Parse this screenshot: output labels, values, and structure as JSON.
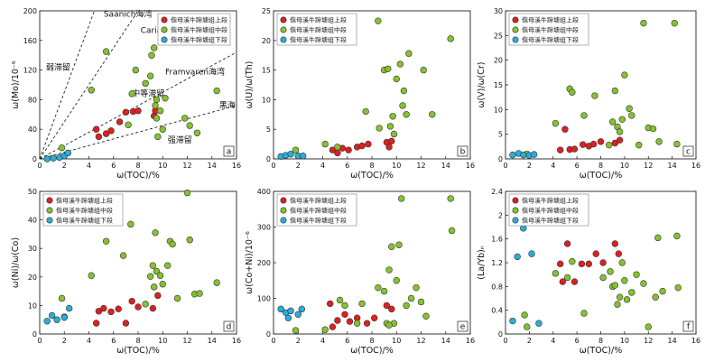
{
  "colors": {
    "upper": "#dd2020",
    "middle": "#86c22c",
    "lower": "#2aaed8",
    "edge": "#333333"
  },
  "legend": [
    "偕母溪牛蹄塘组上段",
    "偕母溪牛蹄塘组中段",
    "偕母溪牛蹄塘组下段"
  ],
  "chart_data": [
    {
      "type": "scatter",
      "label": "a",
      "xlabel": "ω(TOC)/%",
      "ylabel": "ω(Mo)/10⁻⁶",
      "xlim": [
        0,
        16
      ],
      "ylim": [
        0,
        200
      ],
      "xticks": [
        0,
        2,
        4,
        6,
        8,
        10,
        12,
        14,
        16
      ],
      "yticks": [
        0,
        40,
        80,
        120,
        160,
        200
      ],
      "refLines": [
        {
          "name": "Saanich海湾",
          "slope": 45
        },
        {
          "name": "Cariaco盆地",
          "slope": 25
        },
        {
          "name": "Framvaren海湾",
          "slope": 9
        },
        {
          "name": "黑海",
          "slope": 4.5
        }
      ],
      "annotations": [
        "Saanich海湾",
        "Cariaco盆地",
        "弱滞留",
        "中等滞留",
        "Framvaren海湾",
        "黑海",
        "强滞留"
      ],
      "series": [
        {
          "name": "偕母溪牛蹄塘组上段",
          "points": [
            [
              4.6,
              40
            ],
            [
              4.8,
              30
            ],
            [
              5.4,
              34
            ],
            [
              5.8,
              38
            ],
            [
              6.5,
              50
            ],
            [
              7,
              63
            ],
            [
              7.6,
              64
            ],
            [
              8,
              65
            ],
            [
              9.3,
              58
            ],
            [
              9.4,
              65
            ]
          ]
        },
        {
          "name": "偕母溪牛蹄塘组中段",
          "points": [
            [
              1.8,
              15
            ],
            [
              4.2,
              93
            ],
            [
              5.4,
              145
            ],
            [
              7.2,
              46
            ],
            [
              7.8,
              120
            ],
            [
              8.6,
              102
            ],
            [
              9,
              112
            ],
            [
              9.1,
              140
            ],
            [
              9.3,
              150
            ],
            [
              9.4,
              72
            ],
            [
              9.5,
              55
            ],
            [
              9.6,
              30
            ],
            [
              9.8,
              65
            ],
            [
              10,
              40
            ],
            [
              10.2,
              82
            ],
            [
              11,
              160
            ],
            [
              11.8,
              55
            ],
            [
              12.2,
              45
            ],
            [
              12.8,
              35
            ],
            [
              14.4,
              92
            ],
            [
              9.5,
              80
            ],
            [
              7.5,
              88
            ]
          ]
        },
        {
          "name": "偕母溪牛蹄塘组下段",
          "points": [
            [
              0.6,
              0
            ],
            [
              1.1,
              1
            ],
            [
              1.6,
              2
            ],
            [
              2,
              4
            ],
            [
              2.3,
              8
            ]
          ]
        }
      ]
    },
    {
      "type": "scatter",
      "label": "b",
      "xlabel": "ω(TOC)/%",
      "ylabel": "ω(U)/ω(Th)",
      "xlim": [
        0,
        16
      ],
      "ylim": [
        0,
        25
      ],
      "xticks": [
        0,
        2,
        4,
        6,
        8,
        10,
        12,
        14,
        16
      ],
      "yticks": [
        0,
        5,
        10,
        15,
        20,
        25
      ],
      "series": [
        {
          "name": "偕母溪牛蹄塘组上段",
          "points": [
            [
              4.8,
              1.5
            ],
            [
              5.2,
              1.0
            ],
            [
              5.6,
              1.8
            ],
            [
              6.1,
              1.5
            ],
            [
              6.8,
              2.0
            ],
            [
              7.2,
              2.2
            ],
            [
              7.7,
              2.5
            ],
            [
              9.2,
              2.8
            ],
            [
              9.4,
              2.0
            ],
            [
              9.6,
              3.0
            ]
          ]
        },
        {
          "name": "偕母溪牛蹄塘组中段",
          "points": [
            [
              1.8,
              1.5
            ],
            [
              4.2,
              2.5
            ],
            [
              5.2,
              2.0
            ],
            [
              7.5,
              8.0
            ],
            [
              8.6,
              5.2
            ],
            [
              9,
              15.0
            ],
            [
              9.3,
              15.2
            ],
            [
              9.5,
              5.5
            ],
            [
              9.7,
              7.2
            ],
            [
              9.8,
              4.2
            ],
            [
              10,
              13.5
            ],
            [
              10.3,
              16.0
            ],
            [
              10.5,
              9.0
            ],
            [
              10.6,
              11.5
            ],
            [
              10.8,
              7.5
            ],
            [
              11,
              17.8
            ],
            [
              12.2,
              15.0
            ],
            [
              12.9,
              7.5
            ],
            [
              14.4,
              20.3
            ],
            [
              8.5,
              23.3
            ]
          ]
        },
        {
          "name": "偕母溪牛蹄塘组下段",
          "points": [
            [
              0.6,
              0.4
            ],
            [
              1.0,
              0.6
            ],
            [
              1.4,
              0.8
            ],
            [
              2.0,
              0.5
            ],
            [
              2.4,
              0.5
            ]
          ]
        }
      ]
    },
    {
      "type": "scatter",
      "label": "c",
      "xlabel": "ω(TOC)/%",
      "ylabel": "ω(V)/ω(Cr)",
      "xlim": [
        0,
        16
      ],
      "ylim": [
        0,
        30
      ],
      "xticks": [
        0,
        2,
        4,
        6,
        8,
        10,
        12,
        14,
        16
      ],
      "yticks": [
        0,
        5,
        10,
        15,
        20,
        25,
        30
      ],
      "series": [
        {
          "name": "偕母溪牛蹄塘组上段",
          "points": [
            [
              4.6,
              1.8
            ],
            [
              5,
              6.0
            ],
            [
              5.4,
              1.9
            ],
            [
              5.8,
              2.0
            ],
            [
              6.5,
              2.9
            ],
            [
              7,
              2.6
            ],
            [
              7.4,
              3.0
            ],
            [
              8,
              3.5
            ],
            [
              9.2,
              3.2
            ],
            [
              9.6,
              3.8
            ]
          ]
        },
        {
          "name": "偕母溪牛蹄塘组中段",
          "points": [
            [
              1.8,
              1.0
            ],
            [
              4.2,
              7.2
            ],
            [
              5.4,
              14.2
            ],
            [
              5.6,
              13.5
            ],
            [
              6.6,
              8.8
            ],
            [
              7.5,
              12.8
            ],
            [
              8.7,
              2.8
            ],
            [
              9,
              7.5
            ],
            [
              9.2,
              13.8
            ],
            [
              9.4,
              6.5
            ],
            [
              9.6,
              5.5
            ],
            [
              9.8,
              8.0
            ],
            [
              10,
              17.0
            ],
            [
              10.4,
              10.2
            ],
            [
              10.6,
              8.8
            ],
            [
              11.2,
              2.8
            ],
            [
              11.6,
              27.5
            ],
            [
              12,
              6.3
            ],
            [
              12.4,
              6.1
            ],
            [
              12.9,
              3.5
            ],
            [
              14.2,
              27.5
            ],
            [
              14.4,
              3.0
            ]
          ]
        },
        {
          "name": "偕母溪牛蹄塘组下段",
          "points": [
            [
              0.6,
              0.8
            ],
            [
              1.1,
              1.1
            ],
            [
              1.5,
              0.8
            ],
            [
              2.0,
              0.7
            ],
            [
              2.4,
              0.9
            ]
          ]
        }
      ]
    },
    {
      "type": "scatter",
      "label": "d",
      "xlabel": "ω(TOC)/%",
      "ylabel": "ω(Ni)/ω(Co)",
      "xlim": [
        0,
        16
      ],
      "ylim": [
        0,
        50
      ],
      "xticks": [
        0,
        2,
        4,
        6,
        8,
        10,
        12,
        14,
        16
      ],
      "yticks": [
        0,
        10,
        20,
        30,
        40,
        50
      ],
      "series": [
        {
          "name": "偕母溪牛蹄塘组上段",
          "points": [
            [
              4.6,
              3.8
            ],
            [
              4.8,
              8.0
            ],
            [
              5.2,
              9.0
            ],
            [
              5.8,
              7.8
            ],
            [
              6.4,
              8.8
            ],
            [
              7,
              3.8
            ],
            [
              7.5,
              11.5
            ],
            [
              8,
              9.5
            ],
            [
              9.2,
              9.0
            ],
            [
              9.6,
              13.5
            ]
          ]
        },
        {
          "name": "偕母溪牛蹄塘组中段",
          "points": [
            [
              1.8,
              12.5
            ],
            [
              2.0,
              6.0
            ],
            [
              4.2,
              20.5
            ],
            [
              5.4,
              32.5
            ],
            [
              6.8,
              27.5
            ],
            [
              7.4,
              38.5
            ],
            [
              8.6,
              10.5
            ],
            [
              9.0,
              20.2
            ],
            [
              9.2,
              24.0
            ],
            [
              9.4,
              35.5
            ],
            [
              9.5,
              22.0
            ],
            [
              9.8,
              20.5
            ],
            [
              10.0,
              17.5
            ],
            [
              10.4,
              24.0
            ],
            [
              10.6,
              32.5
            ],
            [
              10.8,
              31.5
            ],
            [
              11.2,
              12.5
            ],
            [
              12,
              49.5
            ],
            [
              12.2,
              33.0
            ],
            [
              12.6,
              14.0
            ],
            [
              13.0,
              14.2
            ],
            [
              14.4,
              18.0
            ],
            [
              9.3,
              16.5
            ]
          ]
        },
        {
          "name": "偕母溪牛蹄塘组下段",
          "points": [
            [
              0.6,
              4.5
            ],
            [
              1.0,
              6.5
            ],
            [
              1.4,
              5.0
            ],
            [
              2.0,
              5.8
            ],
            [
              2.4,
              9.0
            ]
          ]
        }
      ]
    },
    {
      "type": "scatter",
      "label": "e",
      "xlabel": "ω(TOC)/%",
      "ylabel": "ω(Co+Ni)/10⁻⁶",
      "xlim": [
        0,
        16
      ],
      "ylim": [
        0,
        400
      ],
      "xticks": [
        0,
        2,
        4,
        6,
        8,
        10,
        12,
        14,
        16
      ],
      "yticks": [
        0,
        100,
        200,
        300,
        400
      ],
      "series": [
        {
          "name": "偕母溪牛蹄塘组上段",
          "points": [
            [
              4.6,
              85
            ],
            [
              4.8,
              20
            ],
            [
              5.2,
              38
            ],
            [
              5.8,
              55
            ],
            [
              6.2,
              35
            ],
            [
              6.8,
              45
            ],
            [
              7.6,
              30
            ],
            [
              8.2,
              45
            ],
            [
              9.2,
              80
            ],
            [
              9.6,
              70
            ]
          ]
        },
        {
          "name": "偕母溪牛蹄塘组中段",
          "points": [
            [
              1.8,
              10
            ],
            [
              4.2,
              12
            ],
            [
              5.4,
              95
            ],
            [
              5.8,
              80
            ],
            [
              6.8,
              30
            ],
            [
              7.2,
              85
            ],
            [
              8.5,
              130
            ],
            [
              9,
              120
            ],
            [
              9.2,
              30
            ],
            [
              9.4,
              180
            ],
            [
              9.6,
              245
            ],
            [
              9.8,
              30
            ],
            [
              10,
              150
            ],
            [
              10.2,
              250
            ],
            [
              10.4,
              380
            ],
            [
              10.8,
              80
            ],
            [
              11.2,
              100
            ],
            [
              11.6,
              130
            ],
            [
              12,
              90
            ],
            [
              12.4,
              50
            ],
            [
              14.4,
              380
            ],
            [
              14.5,
              290
            ],
            [
              9.4,
              25
            ]
          ]
        },
        {
          "name": "偕母溪牛蹄塘组下段",
          "points": [
            [
              0.6,
              70
            ],
            [
              1.0,
              60
            ],
            [
              1.4,
              65
            ],
            [
              2.0,
              55
            ],
            [
              2.3,
              70
            ],
            [
              1.2,
              45
            ]
          ]
        }
      ]
    },
    {
      "type": "scatter",
      "label": "f",
      "xlabel": "ω(TOC)/%",
      "ylabel": "(La/Yb)ₙ",
      "xlim": [
        0,
        16
      ],
      "ylim": [
        0,
        2.4
      ],
      "xticks": [
        0,
        2,
        4,
        6,
        8,
        10,
        12,
        14,
        16
      ],
      "yticks": [
        0,
        0.4,
        0.8,
        1.2,
        1.6,
        2.0,
        2.4
      ],
      "series": [
        {
          "name": "偕母溪牛蹄塘组上段",
          "points": [
            [
              4.6,
              1.18
            ],
            [
              4.8,
              0.88
            ],
            [
              5.2,
              1.52
            ],
            [
              5.8,
              0.88
            ],
            [
              6.4,
              1.18
            ],
            [
              7,
              1.18
            ],
            [
              7.6,
              1.35
            ],
            [
              8.2,
              1.2
            ],
            [
              9.2,
              1.52
            ],
            [
              9.5,
              1.35
            ]
          ]
        },
        {
          "name": "偕母溪牛蹄塘组中段",
          "points": [
            [
              1.6,
              0.32
            ],
            [
              1.8,
              0.12
            ],
            [
              4.2,
              1.02
            ],
            [
              5.2,
              0.95
            ],
            [
              5.6,
              1.22
            ],
            [
              6.6,
              0.35
            ],
            [
              8.2,
              0.95
            ],
            [
              8.8,
              1.05
            ],
            [
              9.0,
              0.8
            ],
            [
              9.2,
              0.82
            ],
            [
              9.4,
              0.5
            ],
            [
              9.6,
              0.62
            ],
            [
              9.8,
              1.2
            ],
            [
              10.2,
              0.58
            ],
            [
              10.6,
              0.7
            ],
            [
              11.0,
              1.0
            ],
            [
              11.6,
              0.85
            ],
            [
              12.0,
              0.12
            ],
            [
              12.6,
              0.62
            ],
            [
              12.8,
              1.62
            ],
            [
              13.2,
              0.72
            ],
            [
              14.4,
              1.65
            ],
            [
              14.5,
              0.78
            ],
            [
              10.0,
              0.9
            ]
          ]
        },
        {
          "name": "偕母溪牛蹄塘组下段",
          "points": [
            [
              0.6,
              0.22
            ],
            [
              1.0,
              1.3
            ],
            [
              1.5,
              1.78
            ],
            [
              2.2,
              1.35
            ],
            [
              2.8,
              0.18
            ]
          ]
        }
      ]
    }
  ]
}
